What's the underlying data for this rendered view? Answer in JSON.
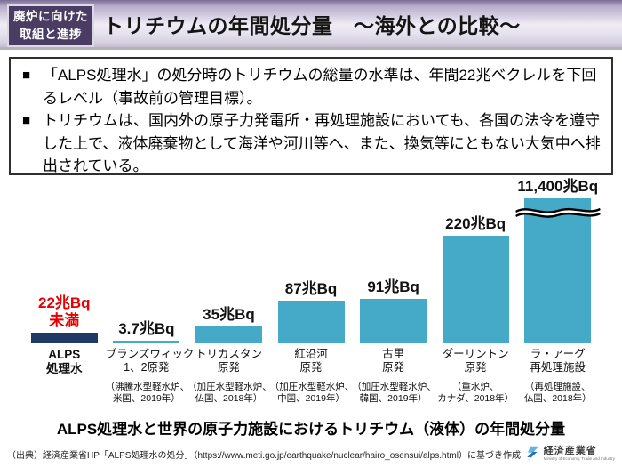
{
  "header": {
    "badge": {
      "line1": "廃炉に向けた",
      "line2": "取組と進捗"
    },
    "title": "トリチウムの年間処分量　～海外との比較～"
  },
  "summary_box": {
    "bullet_glyph": "■",
    "items": [
      "「ALPS処理水」の処分時のトリチウムの総量の水準は、年間22兆ベクレルを下回るレベル（事故前の管理目標）。",
      "トリチウムは、国内外の原子力発電所・再処理施設においても、各国の法令を遵守した上で、液体廃棄物として海洋や河川等へ、また、換気等にともない大気中へ排出されている。"
    ]
  },
  "chart_data": {
    "type": "bar",
    "unit": "兆Bq",
    "title": "ALPS処理水と世界の原子力施設におけるトリチウム（液体）の年間処分量",
    "layout": {
      "grid": false,
      "value_labels_position": "above",
      "axis_break_on_last_bar": true
    },
    "bars": [
      {
        "name_line1": "ALPS",
        "name_line2": "処理水",
        "value": 22,
        "value_label": "22兆Bq",
        "value_sublabel": "未満",
        "value_color": "#e60000",
        "color": "#1f3864",
        "detail_line1": "",
        "detail_line2": ""
      },
      {
        "name_line1": "ブランズウィック",
        "name_line2": "1、2原発",
        "value": 3.7,
        "value_label": "3.7兆Bq",
        "color": "#45aac8",
        "detail_line1": "（沸騰水型軽水炉、",
        "detail_line2": "米国、2019年）"
      },
      {
        "name_line1": "トリカスタン",
        "name_line2": "原発",
        "value": 35,
        "value_label": "35兆Bq",
        "color": "#45aac8",
        "detail_line1": "（加圧水型軽水炉、",
        "detail_line2": "仏国、2018年）"
      },
      {
        "name_line1": "紅沿河",
        "name_line2": "原発",
        "value": 87,
        "value_label": "87兆Bq",
        "color": "#45aac8",
        "detail_line1": "（加圧水型軽水炉、",
        "detail_line2": "中国、2019年）"
      },
      {
        "name_line1": "古里",
        "name_line2": "原発",
        "value": 91,
        "value_label": "91兆Bq",
        "color": "#45aac8",
        "detail_line1": "（加圧水型軽水炉、",
        "detail_line2": "韓国、2019年）"
      },
      {
        "name_line1": "ダーリントン",
        "name_line2": "原発",
        "value": 220,
        "value_label": "220兆Bq",
        "color": "#45aac8",
        "detail_line1": "（重水炉、",
        "detail_line2": "カナダ、2018年）"
      },
      {
        "name_line1": "ラ・アーグ",
        "name_line2": "再処理施設",
        "value": 11400,
        "value_label": "11,400兆Bq",
        "color": "#45aac8",
        "broken": true,
        "detail_line1": "（再処理施設、",
        "detail_line2": "仏国、2018年）"
      }
    ]
  },
  "footer": {
    "source": "（出典）経済産業省HP「ALPS処理水の処分」（https://www.meti.go.jp/earthquake/nuclear/hairo_osensui/alps.html）に基づき作成",
    "logo": {
      "agency": "経済産業省",
      "agency_en": "Ministry of Economy, Trade and Industry"
    }
  }
}
